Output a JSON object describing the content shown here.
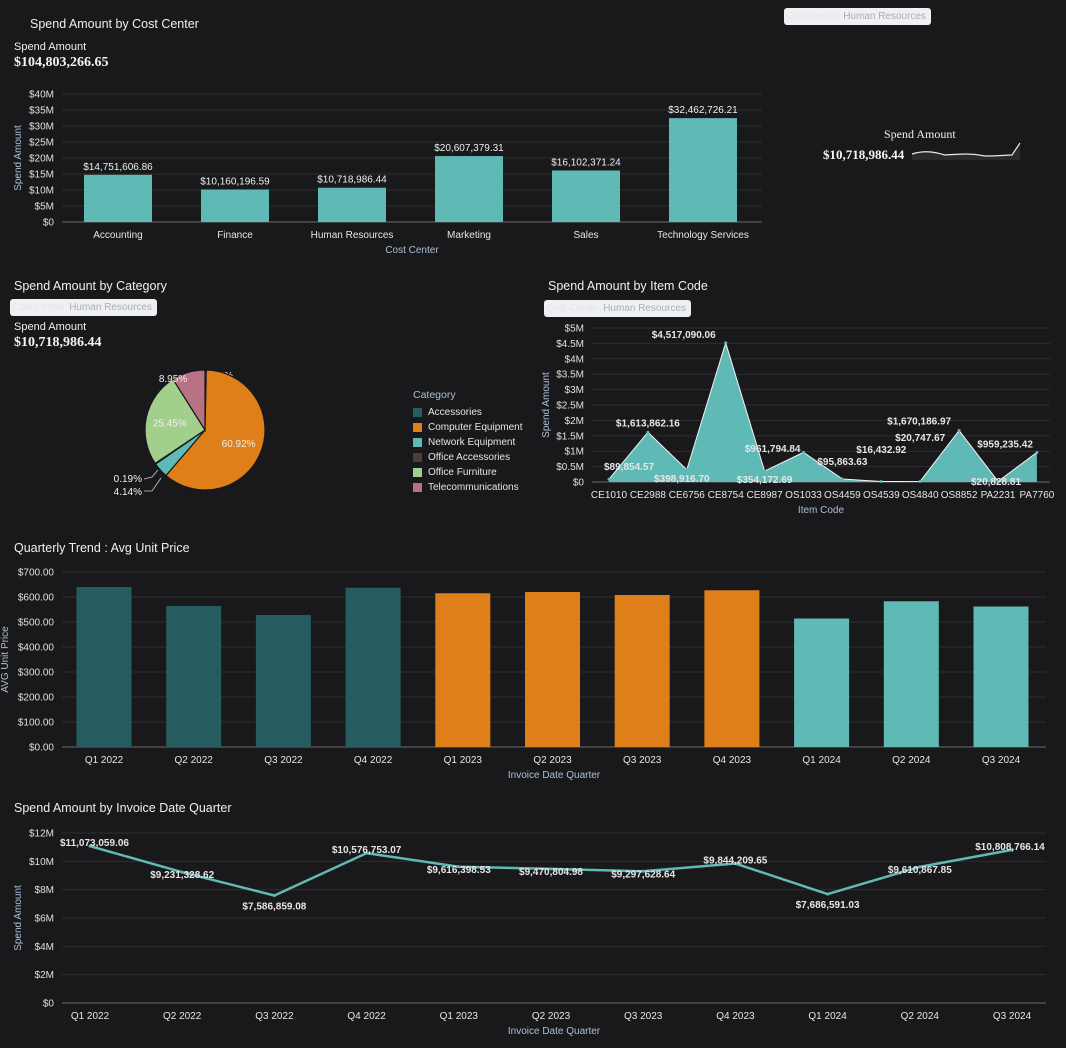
{
  "filter": {
    "key": "Cost Center",
    "value": "Human Resources"
  },
  "colors": {
    "background": "#19181a",
    "teal": "#5fbab5",
    "dark_teal": "#265b60",
    "orange": "#de7f1a",
    "axis_label": "#a9c0d8",
    "grid": "#2e2e30"
  },
  "cost_center_panel": {
    "title": "Spend Amount by Cost Center",
    "kpi_label": "Spend Amount",
    "kpi_value": "$104,803,266.65"
  },
  "kpi_panel": {
    "label": "Spend Amount",
    "value": "$10,718,986.44",
    "sparkline": "sparkline-icon"
  },
  "category_panel": {
    "title": "Spend Amount by Category",
    "kpi_label": "Spend Amount",
    "kpi_value": "$10,718,986.44",
    "legend_title": "Category"
  },
  "item_code_panel": {
    "title": "Spend Amount by Item Code"
  },
  "quarterly_panel": {
    "title": "Quarterly Trend : Avg Unit Price"
  },
  "invoice_panel": {
    "title": "Spend Amount by Invoice Date Quarter"
  },
  "chart_data": [
    {
      "id": "cost_center",
      "type": "bar",
      "xlabel": "Cost Center",
      "ylabel": "Spend Amount",
      "categories": [
        "Accounting",
        "Finance",
        "Human Resources",
        "Marketing",
        "Sales",
        "Technology Services"
      ],
      "values": [
        14751606.86,
        10160196.59,
        10718986.44,
        20607379.31,
        16102371.24,
        32462726.21
      ],
      "data_labels": [
        "$14,751,606.86",
        "$10,160,196.59",
        "$10,718,986.44",
        "$20,607,379.31",
        "$16,102,371.24",
        "$32,462,726.21"
      ],
      "ylim": [
        0,
        40000000
      ],
      "yticks": [
        0,
        5000000,
        10000000,
        15000000,
        20000000,
        25000000,
        30000000,
        35000000,
        40000000
      ],
      "ytick_labels": [
        "$0",
        "$5M",
        "$10M",
        "$15M",
        "$20M",
        "$25M",
        "$30M",
        "$35M",
        "$40M"
      ],
      "color": "#5fbab5",
      "grid": true
    },
    {
      "id": "category",
      "type": "pie",
      "categories": [
        "Accessories",
        "Computer Equipment",
        "Network Equipment",
        "Office Accessories",
        "Office Furniture",
        "Telecommunications"
      ],
      "values": [
        0.35,
        60.92,
        4.14,
        0.19,
        25.45,
        8.95
      ],
      "data_labels": [
        "0.35%",
        "60.92%",
        "4.14%",
        "0.19%",
        "25.45%",
        "8.95%"
      ],
      "colors": [
        "#265b60",
        "#de7f1a",
        "#5fbab5",
        "#4a3f37",
        "#a3cf8c",
        "#b97283"
      ],
      "legend": "right"
    },
    {
      "id": "item_code",
      "type": "area",
      "xlabel": "Item Code",
      "ylabel": "Spend Amount",
      "categories": [
        "CE1010",
        "CE2988",
        "CE6756",
        "CE8754",
        "CE8987",
        "OS1033",
        "OS4459",
        "OS4539",
        "OS4840",
        "OS8852",
        "PA2231",
        "PA7760"
      ],
      "values": [
        89854.57,
        1613862.16,
        398916.7,
        4517090.06,
        354172.69,
        961794.84,
        95863.63,
        16432.92,
        20747.67,
        1670186.97,
        20828.81,
        959235.42
      ],
      "data_labels": [
        "$89,854.57",
        "$1,613,862.16",
        "$398,916.70",
        "$4,517,090.06",
        "$354,172.69",
        "$961,794.84",
        "$95,863.63",
        "$16,432.92",
        "$20,747.67",
        "$1,670,186.97",
        "$20,828.81",
        "$959,235.42"
      ],
      "ylim": [
        0,
        5000000
      ],
      "yticks": [
        0,
        500000,
        1000000,
        1500000,
        2000000,
        2500000,
        3000000,
        3500000,
        4000000,
        4500000,
        5000000
      ],
      "ytick_labels": [
        "$0",
        "$0.5M",
        "$1M",
        "$1.5M",
        "$2M",
        "$2.5M",
        "$3M",
        "$3.5M",
        "$4M",
        "$4.5M",
        "$5M"
      ],
      "color": "#5fbab5",
      "grid": true
    },
    {
      "id": "quarterly_avg_price",
      "type": "bar",
      "xlabel": "Invoice Date Quarter",
      "ylabel": "AVG Unit Price",
      "categories": [
        "Q1 2022",
        "Q2 2022",
        "Q3 2022",
        "Q4 2022",
        "Q1 2023",
        "Q2 2023",
        "Q3 2023",
        "Q4 2023",
        "Q1 2024",
        "Q2 2024",
        "Q3 2024"
      ],
      "values": [
        640,
        564,
        528,
        637,
        615,
        620,
        608,
        627,
        514,
        583,
        562
      ],
      "bar_colors": [
        "#265b60",
        "#265b60",
        "#265b60",
        "#265b60",
        "#de7f1a",
        "#de7f1a",
        "#de7f1a",
        "#de7f1a",
        "#5fbab5",
        "#5fbab5",
        "#5fbab5"
      ],
      "ylim": [
        0,
        700
      ],
      "yticks": [
        0,
        100,
        200,
        300,
        400,
        500,
        600,
        700
      ],
      "ytick_labels": [
        "$0.00",
        "$100.00",
        "$200.00",
        "$300.00",
        "$400.00",
        "$500.00",
        "$600.00",
        "$700.00"
      ],
      "grid": true
    },
    {
      "id": "invoice_quarter",
      "type": "line",
      "xlabel": "Invoice Date Quarter",
      "ylabel": "Spend Amount",
      "categories": [
        "Q1 2022",
        "Q2 2022",
        "Q3 2022",
        "Q4 2022",
        "Q1 2023",
        "Q2 2023",
        "Q3 2023",
        "Q4 2023",
        "Q1 2024",
        "Q2 2024",
        "Q3 2024"
      ],
      "values": [
        11073059.06,
        9231328.62,
        7586859.08,
        10576753.07,
        9616398.53,
        9470804.98,
        9297628.64,
        9844209.65,
        7686591.03,
        9610867.85,
        10808766.14
      ],
      "data_labels": [
        "$11,073,059.06",
        "$9,231,328.62",
        "$7,586,859.08",
        "$10,576,753.07",
        "$9,616,398.53",
        "$9,470,804.98",
        "$9,297,628.64",
        "$9,844,209.65",
        "$7,686,591.03",
        "$9,610,867.85",
        "$10,808,766.14"
      ],
      "ylim": [
        0,
        12000000
      ],
      "yticks": [
        0,
        2000000,
        4000000,
        6000000,
        8000000,
        10000000,
        12000000
      ],
      "ytick_labels": [
        "$0",
        "$2M",
        "$4M",
        "$6M",
        "$8M",
        "$10M",
        "$12M"
      ],
      "color": "#5fbab5",
      "grid": true
    }
  ]
}
